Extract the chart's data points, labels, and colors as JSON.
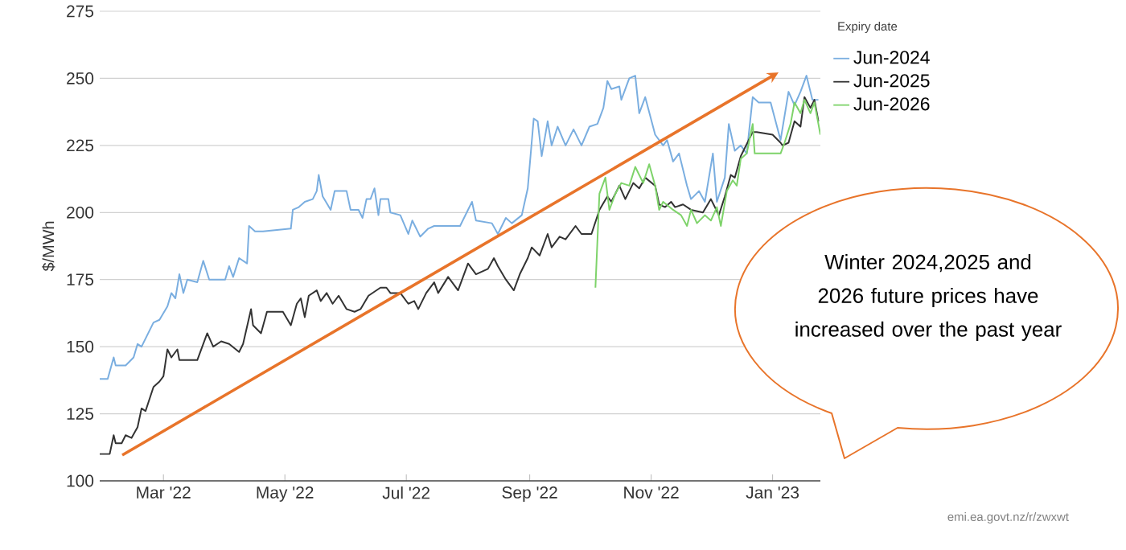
{
  "chart_data": {
    "type": "line",
    "ylabel": "$/MWh",
    "legend_title": "Expiry date",
    "legend": "top right",
    "grid": "y",
    "marker": "none",
    "line_style": "solid",
    "xlim": [
      "2022-01-28",
      "2023-01-25"
    ],
    "ylim": [
      100,
      275
    ],
    "yticks": [
      100,
      125,
      150,
      175,
      200,
      225,
      250,
      275
    ],
    "xticks": [
      {
        "value": "2022-03-01",
        "label": "Mar '22"
      },
      {
        "value": "2022-05-01",
        "label": "May '22"
      },
      {
        "value": "2022-07-01",
        "label": "Jul '22"
      },
      {
        "value": "2022-09-01",
        "label": "Sep '22"
      },
      {
        "value": "2022-11-01",
        "label": "Nov '22"
      },
      {
        "value": "2023-01-01",
        "label": "Jan '23"
      }
    ],
    "annotations": [
      "Winter 2024,2025 and 2026 future prices have increased over the past year",
      "emi.ea.govt.nz/r/zwxwt"
    ],
    "series": [
      {
        "name": "Jun-2024",
        "color": "#7aaee0",
        "x": [
          "2022-01-28",
          "2022-02-01",
          "2022-02-04",
          "2022-02-05",
          "2022-02-10",
          "2022-02-14",
          "2022-02-16",
          "2022-02-18",
          "2022-02-24",
          "2022-02-27",
          "2022-03-03",
          "2022-03-05",
          "2022-03-07",
          "2022-03-09",
          "2022-03-11",
          "2022-03-13",
          "2022-03-18",
          "2022-03-21",
          "2022-03-24",
          "2022-04-01",
          "2022-04-03",
          "2022-04-05",
          "2022-04-08",
          "2022-04-12",
          "2022-04-13",
          "2022-04-16",
          "2022-04-20",
          "2022-05-04",
          "2022-05-05",
          "2022-05-08",
          "2022-05-11",
          "2022-05-15",
          "2022-05-17",
          "2022-05-18",
          "2022-05-20",
          "2022-05-24",
          "2022-05-26",
          "2022-06-01",
          "2022-06-03",
          "2022-06-07",
          "2022-06-09",
          "2022-06-11",
          "2022-06-13",
          "2022-06-15",
          "2022-06-17",
          "2022-06-18",
          "2022-06-22",
          "2022-06-23",
          "2022-06-28",
          "2022-07-02",
          "2022-07-04",
          "2022-07-08",
          "2022-07-12",
          "2022-07-15",
          "2022-07-19",
          "2022-07-28",
          "2022-08-03",
          "2022-08-05",
          "2022-08-13",
          "2022-08-16",
          "2022-08-20",
          "2022-08-23",
          "2022-08-28",
          "2022-08-31",
          "2022-09-03",
          "2022-09-05",
          "2022-09-07",
          "2022-09-10",
          "2022-09-12",
          "2022-09-15",
          "2022-09-19",
          "2022-09-23",
          "2022-09-27",
          "2022-10-01",
          "2022-10-05",
          "2022-10-08",
          "2022-10-10",
          "2022-10-12",
          "2022-10-16",
          "2022-10-17",
          "2022-10-21",
          "2022-10-24",
          "2022-10-26",
          "2022-10-29",
          "2022-11-03",
          "2022-11-07",
          "2022-11-09",
          "2022-11-12",
          "2022-11-15",
          "2022-11-19",
          "2022-11-21",
          "2022-11-25",
          "2022-11-28",
          "2022-12-02",
          "2022-12-04",
          "2022-12-08",
          "2022-12-10",
          "2022-12-13",
          "2022-12-16",
          "2022-12-19",
          "2022-12-22",
          "2022-12-25",
          "2022-12-31",
          "2023-01-05",
          "2023-01-09",
          "2023-01-12",
          "2023-01-15",
          "2023-01-18",
          "2023-01-21",
          "2023-01-24"
        ],
        "values": [
          138,
          138,
          146,
          143,
          143,
          146,
          151,
          150,
          159,
          160,
          165,
          170,
          168,
          177,
          170,
          175,
          174,
          182,
          175,
          175,
          180,
          176,
          183,
          181,
          195,
          193,
          193,
          194,
          201,
          202,
          204,
          205,
          208,
          214,
          206,
          201,
          208,
          208,
          201,
          201,
          198,
          205,
          205,
          209,
          199,
          205,
          205,
          200,
          199,
          192,
          197,
          191,
          194,
          195,
          195,
          195,
          204,
          197,
          196,
          192,
          198,
          196,
          199,
          209,
          235,
          234,
          221,
          234,
          225,
          232,
          225,
          231,
          225,
          232,
          233,
          239,
          249,
          246,
          247,
          242,
          250,
          251,
          237,
          243,
          229,
          225,
          227,
          219,
          222,
          210,
          205,
          208,
          204,
          222,
          204,
          213,
          233,
          223,
          225,
          222,
          243,
          241,
          241,
          227,
          245,
          240,
          245,
          251,
          242,
          242
        ]
      },
      {
        "name": "Jun-2025",
        "color": "#333333",
        "x": [
          "2022-01-28",
          "2022-02-02",
          "2022-02-04",
          "2022-02-05",
          "2022-02-08",
          "2022-02-10",
          "2022-02-13",
          "2022-02-16",
          "2022-02-18",
          "2022-02-20",
          "2022-02-24",
          "2022-02-27",
          "2022-03-01",
          "2022-03-03",
          "2022-03-05",
          "2022-03-08",
          "2022-03-09",
          "2022-03-18",
          "2022-03-23",
          "2022-03-26",
          "2022-03-30",
          "2022-04-03",
          "2022-04-08",
          "2022-04-10",
          "2022-04-14",
          "2022-04-15",
          "2022-04-19",
          "2022-04-22",
          "2022-04-30",
          "2022-05-04",
          "2022-05-07",
          "2022-05-09",
          "2022-05-11",
          "2022-05-13",
          "2022-05-17",
          "2022-05-19",
          "2022-05-22",
          "2022-05-25",
          "2022-05-28",
          "2022-06-01",
          "2022-06-05",
          "2022-06-08",
          "2022-06-12",
          "2022-06-18",
          "2022-06-21",
          "2022-06-23",
          "2022-06-28",
          "2022-07-02",
          "2022-07-05",
          "2022-07-07",
          "2022-07-11",
          "2022-07-15",
          "2022-07-17",
          "2022-07-22",
          "2022-07-27",
          "2022-08-01",
          "2022-08-05",
          "2022-08-11",
          "2022-08-14",
          "2022-08-16",
          "2022-08-20",
          "2022-08-24",
          "2022-08-27",
          "2022-08-31",
          "2022-09-02",
          "2022-09-06",
          "2022-09-10",
          "2022-09-12",
          "2022-09-16",
          "2022-09-19",
          "2022-09-24",
          "2022-09-27",
          "2022-10-02",
          "2022-10-06",
          "2022-10-10",
          "2022-10-12",
          "2022-10-16",
          "2022-10-19",
          "2022-10-23",
          "2022-10-26",
          "2022-10-29",
          "2022-11-03",
          "2022-11-05",
          "2022-11-08",
          "2022-11-11",
          "2022-11-13",
          "2022-11-17",
          "2022-11-21",
          "2022-11-27",
          "2022-12-01",
          "2022-12-03",
          "2022-12-05",
          "2022-12-08",
          "2022-12-11",
          "2022-12-13",
          "2022-12-16",
          "2022-12-22",
          "2022-12-24",
          "2023-01-01",
          "2023-01-05",
          "2023-01-06",
          "2023-01-09",
          "2023-01-12",
          "2023-01-15",
          "2023-01-17",
          "2023-01-20",
          "2023-01-22",
          "2023-01-24"
        ],
        "values": [
          110,
          110,
          117,
          114,
          114,
          117,
          116,
          120,
          127,
          126,
          135,
          137,
          139,
          149,
          146,
          149,
          145,
          145,
          155,
          150,
          152,
          151,
          148,
          151,
          164,
          158,
          155,
          163,
          163,
          158,
          166,
          168,
          161,
          169,
          171,
          167,
          170,
          166,
          169,
          164,
          163,
          164,
          169,
          172,
          172,
          170,
          170,
          166,
          167,
          164,
          170,
          174,
          170,
          176,
          171,
          181,
          177,
          179,
          183,
          180,
          175,
          171,
          177,
          183,
          187,
          184,
          192,
          187,
          191,
          190,
          195,
          192,
          192,
          201,
          206,
          204,
          210,
          205,
          211,
          209,
          213,
          210,
          203,
          202,
          204,
          202,
          203,
          201,
          200,
          205,
          202,
          199,
          206,
          214,
          213,
          221,
          230,
          230,
          229,
          226,
          225,
          226,
          234,
          232,
          243,
          239,
          242,
          234
        ]
      },
      {
        "name": "Jun-2026",
        "color": "#7ed36a",
        "x": [
          "2022-10-04",
          "2022-10-06",
          "2022-10-09",
          "2022-10-11",
          "2022-10-14",
          "2022-10-17",
          "2022-10-21",
          "2022-10-24",
          "2022-10-28",
          "2022-10-31",
          "2022-11-03",
          "2022-11-05",
          "2022-11-07",
          "2022-11-12",
          "2022-11-16",
          "2022-11-19",
          "2022-11-21",
          "2022-11-24",
          "2022-11-28",
          "2022-12-01",
          "2022-12-04",
          "2022-12-06",
          "2022-12-09",
          "2022-12-12",
          "2022-12-14",
          "2022-12-16",
          "2022-12-19",
          "2022-12-22",
          "2022-12-23",
          "2023-01-01",
          "2023-01-05",
          "2023-01-07",
          "2023-01-10",
          "2023-01-12",
          "2023-01-15",
          "2023-01-17",
          "2023-01-20",
          "2023-01-22",
          "2023-01-25"
        ],
        "values": [
          172,
          207,
          213,
          201,
          207,
          211,
          210,
          217,
          211,
          218,
          210,
          201,
          204,
          201,
          199,
          195,
          201,
          196,
          199,
          197,
          202,
          195,
          208,
          212,
          210,
          220,
          222,
          233,
          222,
          222,
          222,
          226,
          233,
          241,
          237,
          242,
          237,
          241,
          229
        ]
      }
    ]
  }
}
